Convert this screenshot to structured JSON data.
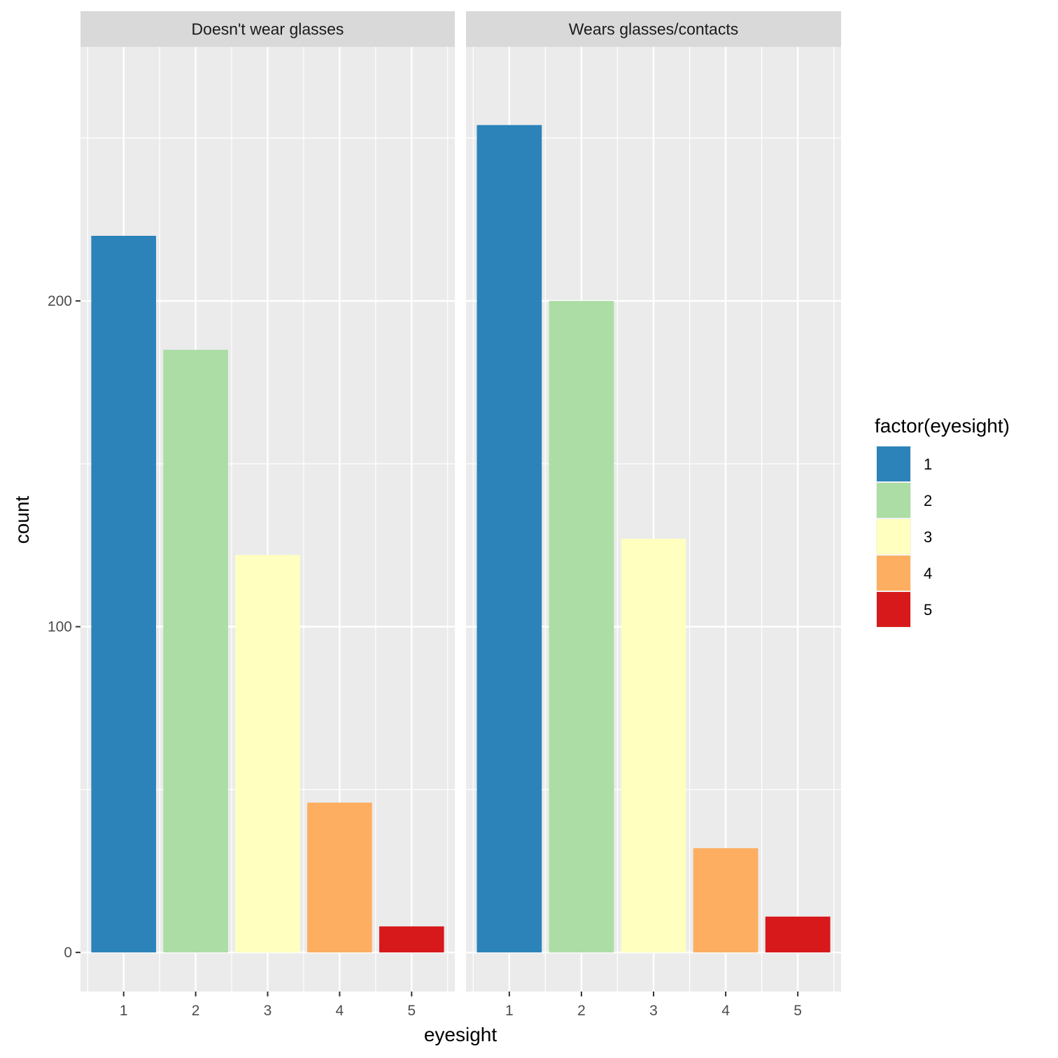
{
  "chart_data": {
    "type": "bar",
    "xlabel": "eyesight",
    "ylabel": "count",
    "categories": [
      "1",
      "2",
      "3",
      "4",
      "5"
    ],
    "y_ticks": [
      0,
      100,
      200
    ],
    "ylim": [
      -12,
      278
    ],
    "grid": true,
    "legend": {
      "title": "factor(eyesight)",
      "position": "right",
      "entries": [
        {
          "label": "1",
          "color": "#2B83BA"
        },
        {
          "label": "2",
          "color": "#ABDDA4"
        },
        {
          "label": "3",
          "color": "#FFFFBF"
        },
        {
          "label": "4",
          "color": "#FDAE61"
        },
        {
          "label": "5",
          "color": "#D7191C"
        }
      ]
    },
    "facets": [
      {
        "label": "Doesn't wear glasses",
        "values": [
          220,
          185,
          122,
          46,
          8
        ]
      },
      {
        "label": "Wears glasses/contacts",
        "values": [
          254,
          200,
          127,
          32,
          11
        ]
      }
    ]
  }
}
